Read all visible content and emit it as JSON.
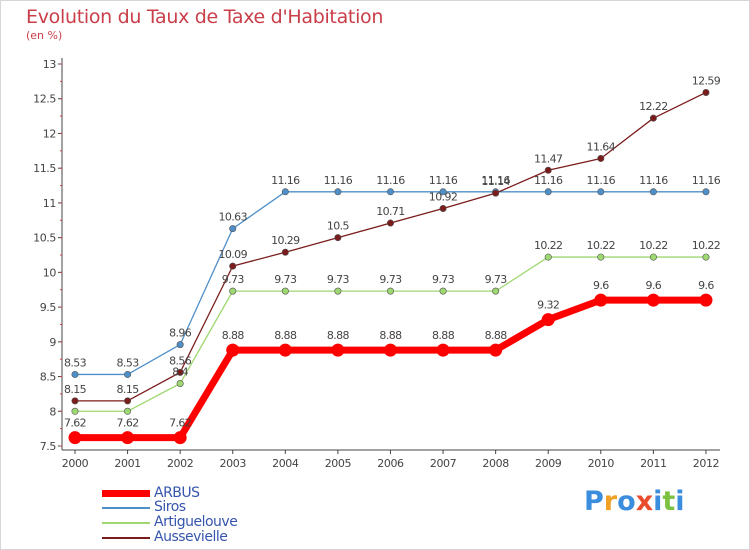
{
  "title": "Evolution du Taux de Taxe d'Habitation",
  "unit_label": "(en %)",
  "chart_data": {
    "type": "line",
    "title": "Evolution du Taux de Taxe d'Habitation",
    "ylabel": "(en %)",
    "xlabel": "",
    "x": [
      "2000",
      "2001",
      "2002",
      "2003",
      "2004",
      "2005",
      "2006",
      "2007",
      "2008",
      "2009",
      "2010",
      "2011",
      "2012"
    ],
    "ylim": [
      7.5,
      13
    ],
    "yticks": [
      "7.5",
      "8",
      "8.5",
      "9",
      "9.5",
      "10",
      "10.5",
      "11",
      "11.5",
      "12",
      "12.5",
      "13"
    ],
    "grid": false,
    "legend_position": "bottom-left",
    "series": [
      {
        "name": "Siros",
        "color": "#4f8fc8",
        "values": [
          8.53,
          8.53,
          8.96,
          10.63,
          11.16,
          11.16,
          11.16,
          11.16,
          11.16,
          11.16,
          11.16,
          11.16,
          11.16
        ],
        "labels": [
          "8.53",
          "8.53",
          "8.96",
          "10.63",
          "11.16",
          "11.16",
          "11.16",
          "11.16",
          "11.16",
          "11.16",
          "11.16",
          "11.16",
          "11.16"
        ]
      },
      {
        "name": "Aussevielle",
        "color": "#7b1c1c",
        "values": [
          8.15,
          8.15,
          8.56,
          10.09,
          10.29,
          10.5,
          10.71,
          10.92,
          11.14,
          11.47,
          11.64,
          12.22,
          12.59
        ],
        "labels": [
          "8.15",
          "8.15",
          "8.56",
          "10.09",
          "10.29",
          "10.5",
          "10.71",
          "10.92",
          "11.14",
          "11.47",
          "11.64",
          "12.22",
          "12.59"
        ]
      },
      {
        "name": "Artiguelouve",
        "color": "#9ed870",
        "values": [
          8.0,
          8.0,
          8.4,
          9.73,
          9.73,
          9.73,
          9.73,
          9.73,
          9.73,
          10.22,
          10.22,
          10.22,
          10.22
        ],
        "labels": [
          "",
          "",
          "8.4",
          "9.73",
          "9.73",
          "9.73",
          "9.73",
          "9.73",
          "9.73",
          "10.22",
          "10.22",
          "10.22",
          "10.22"
        ]
      },
      {
        "name": "ARBUS",
        "color": "#ff0000",
        "values": [
          7.62,
          7.62,
          7.62,
          8.88,
          8.88,
          8.88,
          8.88,
          8.88,
          8.88,
          9.32,
          9.6,
          9.6,
          9.6
        ],
        "labels": [
          "7.62",
          "7.62",
          "7.62",
          "8.88",
          "8.88",
          "8.88",
          "8.88",
          "8.88",
          "8.88",
          "9.32",
          "9.6",
          "9.6",
          "9.6"
        ]
      }
    ]
  },
  "legend": [
    {
      "name": "ARBUS",
      "color": "#ff0000"
    },
    {
      "name": "Siros",
      "color": "#4f8fc8"
    },
    {
      "name": "Artiguelouve",
      "color": "#9ed870"
    },
    {
      "name": "Aussevielle",
      "color": "#7b1c1c"
    }
  ],
  "logo": {
    "text": "Proxiti",
    "letters": [
      {
        "char": "P",
        "color": "#3b8ede"
      },
      {
        "char": "r",
        "color": "#f0a024"
      },
      {
        "char": "o",
        "color": "#3b8ede"
      },
      {
        "char": "x",
        "color": "#e84c2c"
      },
      {
        "char": "i",
        "color": "#3b8ede"
      },
      {
        "char": "t",
        "color": "#7cc242"
      },
      {
        "char": "i",
        "color": "#3b8ede"
      }
    ]
  }
}
